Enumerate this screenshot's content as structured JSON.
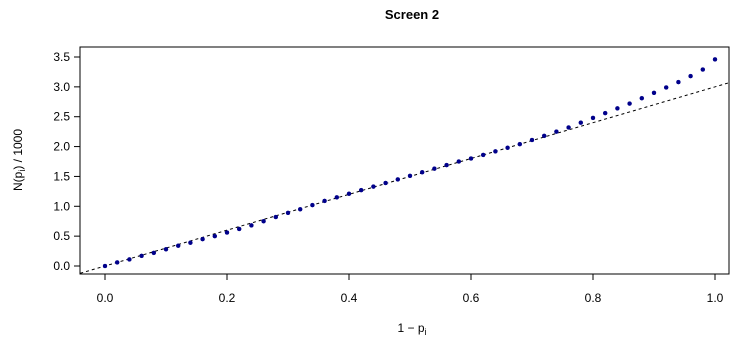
{
  "chart_data": {
    "type": "scatter",
    "title": "Screen 2",
    "xlabel_main": "1 − p",
    "xlabel_sub": "i",
    "ylabel_main": "N(p",
    "ylabel_sub": "i",
    "ylabel_tail": ") / 1000",
    "xlim": [
      0.0,
      1.0
    ],
    "ylim": [
      0.0,
      3.5
    ],
    "x_ticks": [
      "0.0",
      "0.2",
      "0.4",
      "0.6",
      "0.8",
      "1.0"
    ],
    "y_ticks": [
      "0.0",
      "0.5",
      "1.0",
      "1.5",
      "2.0",
      "2.5",
      "3.0",
      "3.5"
    ],
    "reference_line": {
      "intercept": 0.0,
      "slope": 3.0,
      "style": "dashed"
    },
    "point_color": "#00008B",
    "series": [
      {
        "x": [
          0.0,
          0.02,
          0.04,
          0.06,
          0.08,
          0.1,
          0.12,
          0.14,
          0.16,
          0.18,
          0.2,
          0.22,
          0.24,
          0.26,
          0.28,
          0.3,
          0.32,
          0.34,
          0.36,
          0.38,
          0.4,
          0.42,
          0.44,
          0.46,
          0.48,
          0.5,
          0.52,
          0.54,
          0.56,
          0.58,
          0.6,
          0.62,
          0.64,
          0.66,
          0.68,
          0.7,
          0.72,
          0.74,
          0.76,
          0.78,
          0.8,
          0.82,
          0.84,
          0.86,
          0.88,
          0.9,
          0.92,
          0.94,
          0.96,
          0.98,
          1.0
        ],
        "y": [
          0.0,
          0.06,
          0.11,
          0.17,
          0.22,
          0.28,
          0.34,
          0.39,
          0.45,
          0.5,
          0.56,
          0.62,
          0.68,
          0.75,
          0.82,
          0.89,
          0.95,
          1.02,
          1.09,
          1.15,
          1.21,
          1.27,
          1.33,
          1.39,
          1.45,
          1.51,
          1.57,
          1.63,
          1.69,
          1.75,
          1.8,
          1.86,
          1.92,
          1.98,
          2.04,
          2.11,
          2.18,
          2.25,
          2.32,
          2.4,
          2.48,
          2.56,
          2.64,
          2.72,
          2.81,
          2.9,
          2.99,
          3.08,
          3.18,
          3.29,
          3.46
        ]
      }
    ]
  }
}
